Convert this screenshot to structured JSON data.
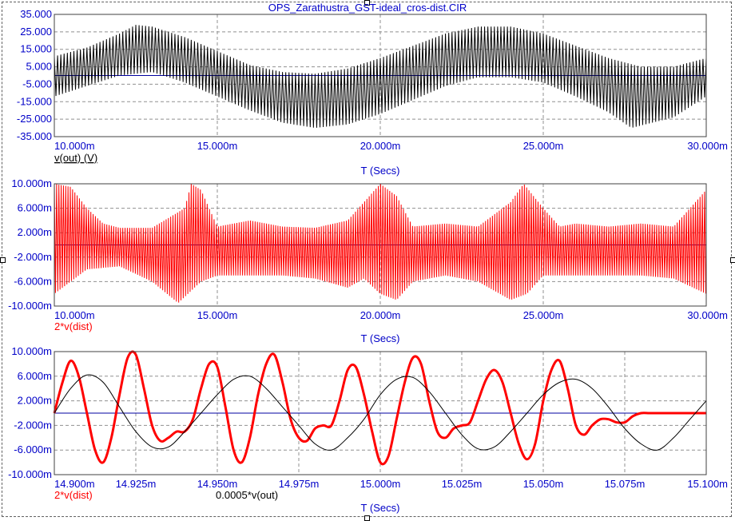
{
  "window": {
    "title": "OPS_Zarathustra_GST-ideal_cros-dist.CIR"
  },
  "colors": {
    "axis_text": "#0000c8",
    "red_trace": "#ff0000",
    "black_trace": "#000000",
    "zero_line": "#0000a0",
    "grid": "#909090"
  },
  "chart_data": [
    {
      "id": "top",
      "type": "line",
      "title": "",
      "xlabel": "T (Secs)",
      "ylabel": "",
      "xlim": [
        10.0,
        30.0
      ],
      "ylim": [
        -35.0,
        35.0
      ],
      "x_unit": "ms",
      "grid": true,
      "x_ticks": [
        "10.000m",
        "15.000m",
        "20.000m",
        "25.000m",
        "30.000m"
      ],
      "y_ticks": [
        "35.000",
        "25.000",
        "15.000",
        "5.000",
        "-5.000",
        "-15.000",
        "-25.000",
        "-35.000"
      ],
      "legend": [
        {
          "label": "v(out) (V)",
          "color": "#000000"
        }
      ],
      "series": [
        {
          "name": "v(out) (V)",
          "kind": "carrier-envelope",
          "color": "#000000",
          "carrier_period": 0.1,
          "upper_envelope": [
            [
              10,
              11
            ],
            [
              11,
              16
            ],
            [
              12,
              24
            ],
            [
              12.5,
              29
            ],
            [
              13,
              28
            ],
            [
              14,
              22
            ],
            [
              15,
              14
            ],
            [
              16,
              6
            ],
            [
              17,
              2
            ],
            [
              18,
              1
            ],
            [
              19,
              4
            ],
            [
              20,
              10
            ],
            [
              21,
              17
            ],
            [
              22,
              24
            ],
            [
              23,
              28
            ],
            [
              24,
              28
            ],
            [
              25,
              24
            ],
            [
              26,
              17
            ],
            [
              27,
              10
            ],
            [
              28,
              5
            ],
            [
              29,
              5
            ],
            [
              30,
              10
            ]
          ],
          "lower_envelope": [
            [
              10,
              -12
            ],
            [
              11,
              -6
            ],
            [
              12,
              0
            ],
            [
              13,
              2
            ],
            [
              14,
              -4
            ],
            [
              15,
              -12
            ],
            [
              16,
              -20
            ],
            [
              17,
              -27
            ],
            [
              18,
              -30
            ],
            [
              19,
              -28
            ],
            [
              20,
              -22
            ],
            [
              21,
              -14
            ],
            [
              22,
              -6
            ],
            [
              23,
              -1
            ],
            [
              24,
              -1
            ],
            [
              25,
              -4
            ],
            [
              26,
              -12
            ],
            [
              27,
              -21
            ],
            [
              27.7,
              -30
            ],
            [
              29,
              -24
            ],
            [
              30,
              -12
            ]
          ]
        }
      ]
    },
    {
      "id": "middle",
      "type": "line",
      "title": "",
      "xlabel": "T (Secs)",
      "ylabel": "",
      "xlim": [
        10.0,
        30.0
      ],
      "ylim": [
        -10.0,
        10.0
      ],
      "x_unit": "ms",
      "grid": true,
      "x_ticks": [
        "10.000m",
        "15.000m",
        "20.000m",
        "25.000m",
        "30.000m"
      ],
      "y_ticks": [
        "10.000m",
        "6.000m",
        "2.000m",
        "-2.000m",
        "-6.000m",
        "-10.000m"
      ],
      "legend": [
        {
          "label": "2*v(dist)",
          "color": "#ff0000"
        }
      ],
      "series": [
        {
          "name": "2*v(dist)",
          "kind": "carrier-envelope",
          "color": "#ff0000",
          "carrier_period": 0.07,
          "upper_envelope": [
            [
              10,
              10
            ],
            [
              10.5,
              9.5
            ],
            [
              11,
              6
            ],
            [
              11.5,
              3.5
            ],
            [
              12,
              2.8
            ],
            [
              13,
              2.8
            ],
            [
              14,
              6
            ],
            [
              14.2,
              10
            ],
            [
              14.5,
              9
            ],
            [
              15,
              3
            ],
            [
              16,
              4
            ],
            [
              17,
              3
            ],
            [
              18,
              2.8
            ],
            [
              19,
              4
            ],
            [
              20,
              10
            ],
            [
              20.5,
              8
            ],
            [
              21,
              3
            ],
            [
              22,
              3.5
            ],
            [
              23,
              3
            ],
            [
              24,
              7
            ],
            [
              24.4,
              10
            ],
            [
              25,
              6
            ],
            [
              25.5,
              3
            ],
            [
              26,
              3.5
            ],
            [
              27,
              3
            ],
            [
              28,
              3.5
            ],
            [
              29,
              3
            ],
            [
              29.5,
              6
            ],
            [
              30,
              9
            ]
          ],
          "lower_envelope": [
            [
              10,
              -8
            ],
            [
              10.5,
              -6
            ],
            [
              11,
              -4
            ],
            [
              12,
              -3.5
            ],
            [
              13,
              -6
            ],
            [
              13.8,
              -9.5
            ],
            [
              14.5,
              -6
            ],
            [
              15,
              -5
            ],
            [
              16,
              -5
            ],
            [
              17,
              -5
            ],
            [
              18,
              -5.5
            ],
            [
              19,
              -7
            ],
            [
              19.5,
              -5.5
            ],
            [
              20,
              -8
            ],
            [
              20.5,
              -9
            ],
            [
              21,
              -6
            ],
            [
              22,
              -5
            ],
            [
              23,
              -6
            ],
            [
              24,
              -9
            ],
            [
              24.5,
              -8
            ],
            [
              25,
              -5
            ],
            [
              26,
              -5
            ],
            [
              27,
              -5
            ],
            [
              28,
              -5
            ],
            [
              29,
              -5.5
            ],
            [
              30,
              -8
            ]
          ]
        }
      ]
    },
    {
      "id": "bottom",
      "type": "line",
      "title": "",
      "xlabel": "T (Secs)",
      "ylabel": "",
      "xlim": [
        14.9,
        15.1
      ],
      "ylim": [
        -10.0,
        10.0
      ],
      "x_unit": "ms",
      "grid": true,
      "x_ticks": [
        "14.900m",
        "14.925m",
        "14.950m",
        "14.975m",
        "15.000m",
        "15.025m",
        "15.050m",
        "15.075m",
        "15.100m"
      ],
      "y_ticks": [
        "10.000m",
        "6.000m",
        "2.000m",
        "-2.000m",
        "-6.000m",
        "-10.000m"
      ],
      "legend": [
        {
          "label": "2*v(dist)",
          "color": "#ff0000"
        },
        {
          "label": "0.0005*v(out)",
          "color": "#000000"
        }
      ],
      "series": [
        {
          "name": "2*v(dist)",
          "color": "#ff0000",
          "x": [
            14.9,
            14.9025,
            14.905,
            14.9075,
            14.91,
            14.9125,
            14.915,
            14.9175,
            14.92,
            14.9225,
            14.925,
            14.9275,
            14.93,
            14.9325,
            14.935,
            14.9375,
            14.94,
            14.9425,
            14.945,
            14.9475,
            14.95,
            14.9525,
            14.955,
            14.9575,
            14.96,
            14.9625,
            14.965,
            14.9675,
            14.97,
            14.9725,
            14.975,
            14.9775,
            14.98,
            14.9825,
            14.985,
            14.9875,
            14.99,
            14.9925,
            14.995,
            14.9975,
            15.0,
            15.0025,
            15.005,
            15.0075,
            15.01,
            15.0125,
            15.015,
            15.0175,
            15.02,
            15.0225,
            15.025,
            15.0275,
            15.03,
            15.0325,
            15.035,
            15.0375,
            15.04,
            15.0425,
            15.045,
            15.0475,
            15.05,
            15.0525,
            15.055,
            15.0575,
            15.06,
            15.0625,
            15.065,
            15.0675,
            15.07,
            15.0725,
            15.075,
            15.0775,
            15.08,
            15.0825,
            15.085,
            15.0875,
            15.09,
            15.0925,
            15.095,
            15.0975,
            15.1
          ],
          "values": [
            0,
            5,
            8.5,
            6,
            0,
            -6,
            -8,
            -4,
            3,
            9,
            9.5,
            4,
            -2,
            -4.5,
            -4,
            -3,
            -3,
            -1,
            4,
            8,
            7.5,
            1,
            -6,
            -8,
            -4,
            3,
            8,
            9.5,
            5,
            -1,
            -4,
            -4.5,
            -2.5,
            -2,
            -2,
            2,
            7,
            7.5,
            3,
            -3,
            -8,
            -7,
            -1,
            5,
            9,
            8,
            2,
            -3,
            -4,
            -2.5,
            -2,
            -1.5,
            2,
            5.5,
            7,
            5,
            0,
            -5,
            -7.5,
            -5,
            2,
            7,
            8.5,
            4,
            -2,
            -3.5,
            -2,
            -1,
            -1,
            -1.5,
            -1.5,
            -0.5,
            0,
            0,
            0,
            0,
            0,
            0,
            0,
            0,
            0
          ]
        },
        {
          "name": "0.0005*v(out)",
          "color": "#000000",
          "x": [
            14.9,
            14.905,
            14.91,
            14.915,
            14.92,
            14.925,
            14.93,
            14.935,
            14.94,
            14.945,
            14.95,
            14.955,
            14.96,
            14.965,
            14.97,
            14.975,
            14.98,
            14.985,
            14.99,
            14.995,
            15.0,
            15.005,
            15.01,
            15.015,
            15.02,
            15.025,
            15.03,
            15.035,
            15.04,
            15.045,
            15.05,
            15.055,
            15.06,
            15.065,
            15.07,
            15.075,
            15.08,
            15.085,
            15.09,
            15.095,
            15.1
          ],
          "values": [
            0,
            4,
            6.2,
            5,
            1,
            -3,
            -5.5,
            -5.5,
            -3,
            0,
            3,
            5.5,
            6,
            4,
            1,
            -2,
            -5,
            -6,
            -4,
            -1,
            3,
            5.5,
            5.8,
            3.5,
            0,
            -3.5,
            -5.8,
            -5.5,
            -3,
            0,
            3,
            5,
            5.5,
            4,
            1,
            -2.5,
            -5,
            -6,
            -4,
            -1,
            2
          ]
        }
      ]
    }
  ]
}
